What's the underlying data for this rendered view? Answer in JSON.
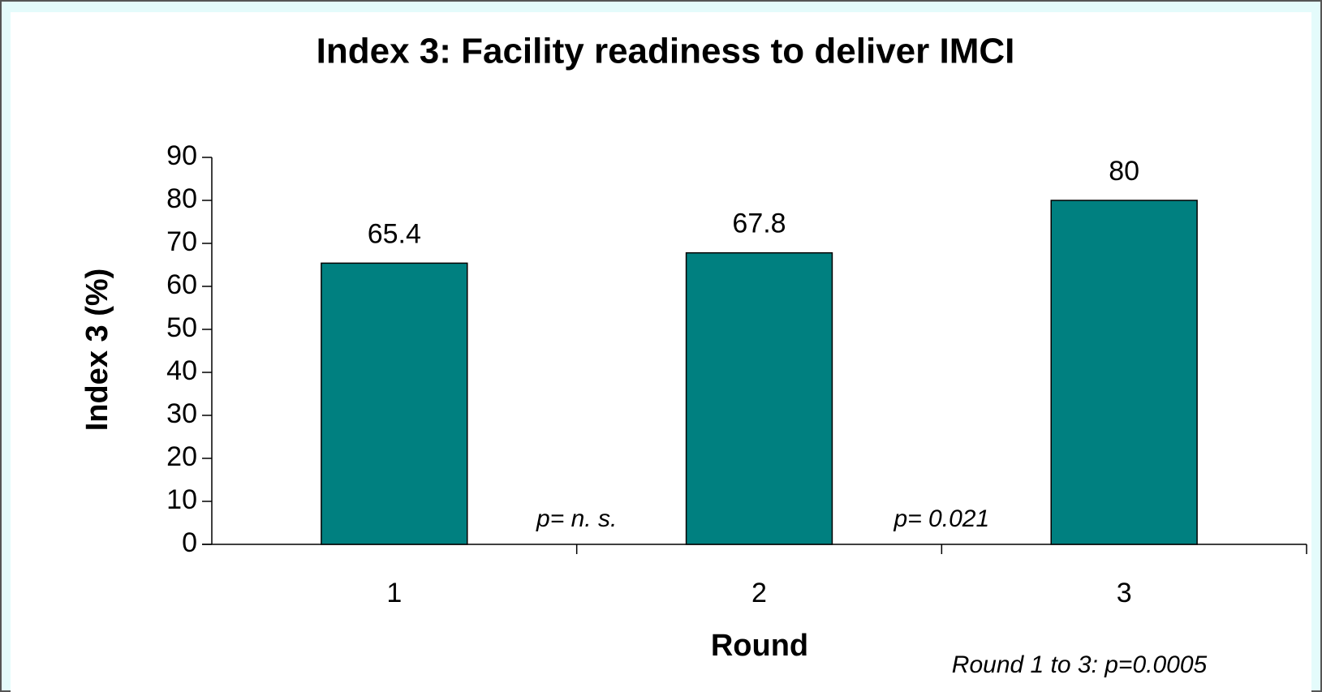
{
  "chart_data": {
    "type": "bar",
    "title": "Index 3: Facility readiness to deliver IMCI",
    "x_label": "Round",
    "y_label": "Index 3 (%)",
    "categories": [
      "1",
      "2",
      "3"
    ],
    "values": [
      65.4,
      67.8,
      80
    ],
    "color": "#008080",
    "ylim": [
      0,
      90
    ],
    "yticks": [
      0,
      10,
      20,
      30,
      40,
      50,
      60,
      70,
      80,
      90
    ],
    "grid": false,
    "annotations": [
      "p= n. s.",
      "p= 0.021",
      "Round 1 to 3: p=0.0005"
    ]
  }
}
